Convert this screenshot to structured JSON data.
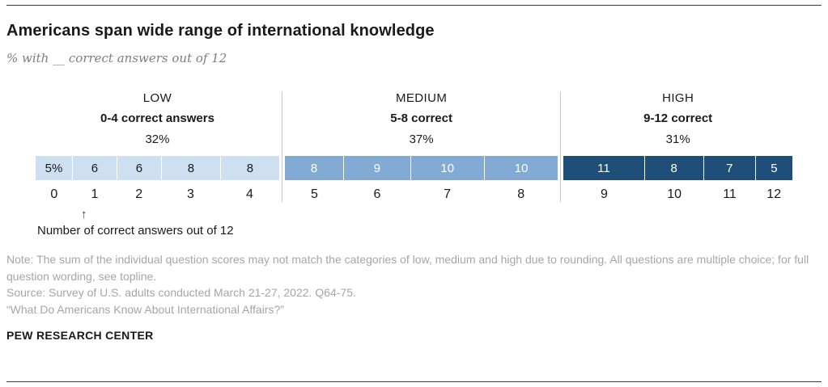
{
  "header": {
    "title": "Americans span wide range of international knowledge",
    "subtitle": "% with __ correct answers out of 12"
  },
  "chart_data": {
    "type": "bar",
    "title": "Americans span wide range of international knowledge",
    "subtitle": "% with __ correct answers out of 12",
    "x_axis_range": [
      0,
      12
    ],
    "legend_position": "none",
    "grid": false,
    "groups": [
      {
        "label": "LOW",
        "sublabel": "0-4 correct answers",
        "percent": "32%",
        "color": "#cddff0",
        "text_color": "#1a1a1a",
        "segments": [
          {
            "value": 5,
            "label": "5%",
            "axis": "0"
          },
          {
            "value": 6,
            "label": "6",
            "axis": "1"
          },
          {
            "value": 6,
            "label": "6",
            "axis": "2"
          },
          {
            "value": 8,
            "label": "8",
            "axis": "3"
          },
          {
            "value": 8,
            "label": "8",
            "axis": "4"
          }
        ]
      },
      {
        "label": "MEDIUM",
        "sublabel": "5-8 correct",
        "percent": "37%",
        "color": "#82aad3",
        "text_color": "#ffffff",
        "segments": [
          {
            "value": 8,
            "label": "8",
            "axis": "5"
          },
          {
            "value": 9,
            "label": "9",
            "axis": "6"
          },
          {
            "value": 10,
            "label": "10",
            "axis": "7"
          },
          {
            "value": 10,
            "label": "10",
            "axis": "8"
          }
        ]
      },
      {
        "label": "HIGH",
        "sublabel": "9-12 correct",
        "percent": "31%",
        "color": "#1f4e79",
        "text_color": "#ffffff",
        "segments": [
          {
            "value": 11,
            "label": "11",
            "axis": "9"
          },
          {
            "value": 8,
            "label": "8",
            "axis": "10"
          },
          {
            "value": 7,
            "label": "7",
            "axis": "11"
          },
          {
            "value": 5,
            "label": "5",
            "axis": "12"
          }
        ]
      }
    ],
    "axis_note": "Number of correct answers out of 12"
  },
  "footer": {
    "note": "Note: The sum of the individual question scores may not match the categories of low, medium and high due to rounding. All questions are multiple choice; for full question wording, see topline.",
    "source": "Source: Survey of U.S. adults conducted March 21-27, 2022. Q64-75.",
    "quote": "“What Do Americans Know About International Affairs?”",
    "brand": "PEW RESEARCH CENTER"
  }
}
